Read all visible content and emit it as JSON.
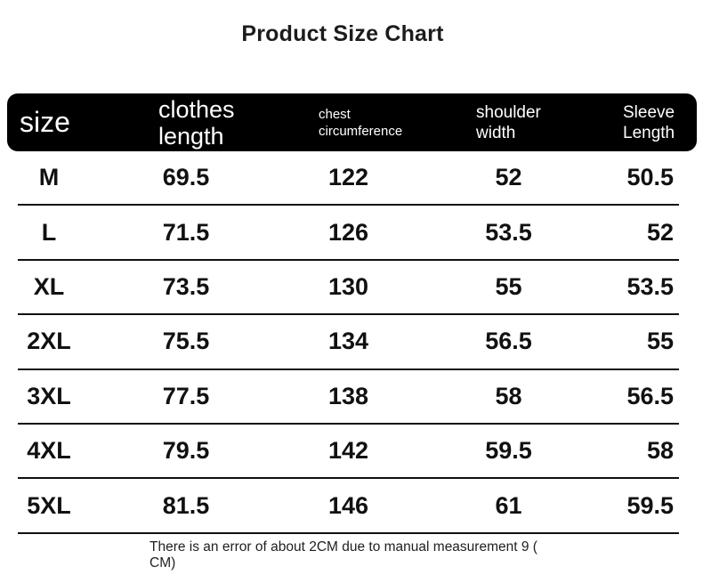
{
  "title": "Product Size Chart",
  "table": {
    "columns": [
      {
        "key": "size",
        "label": "size"
      },
      {
        "key": "clothes_length",
        "label": "clothes length"
      },
      {
        "key": "chest_circumference",
        "label": "chest circumference"
      },
      {
        "key": "shoulder_width",
        "label": "shoulder width"
      },
      {
        "key": "sleeve_length",
        "label": "Sleeve Length"
      }
    ],
    "rows": [
      {
        "size": "M",
        "clothes_length": "69.5",
        "chest_circumference": "122",
        "shoulder_width": "52",
        "sleeve_length": "50.5"
      },
      {
        "size": "L",
        "clothes_length": "71.5",
        "chest_circumference": "126",
        "shoulder_width": "53.5",
        "sleeve_length": "52"
      },
      {
        "size": "XL",
        "clothes_length": "73.5",
        "chest_circumference": "130",
        "shoulder_width": "55",
        "sleeve_length": "53.5"
      },
      {
        "size": "2XL",
        "clothes_length": "75.5",
        "chest_circumference": "134",
        "shoulder_width": "56.5",
        "sleeve_length": "55"
      },
      {
        "size": "3XL",
        "clothes_length": "77.5",
        "chest_circumference": "138",
        "shoulder_width": "58",
        "sleeve_length": "56.5"
      },
      {
        "size": "4XL",
        "clothes_length": "79.5",
        "chest_circumference": "142",
        "shoulder_width": "59.5",
        "sleeve_length": "58"
      },
      {
        "size": "5XL",
        "clothes_length": "81.5",
        "chest_circumference": "146",
        "shoulder_width": "61",
        "sleeve_length": "59.5"
      }
    ]
  },
  "footnote": "There is an error of about 2CM due to manual measurement 9 ( CM)",
  "colors": {
    "header_background": "#000000",
    "header_text": "#ffffff",
    "body_text": "#111111",
    "row_divider": "#101010",
    "page_background": "#ffffff"
  },
  "chart_data": {
    "type": "table",
    "title": "Product Size Chart",
    "columns": [
      "size",
      "clothes length",
      "chest circumference",
      "shoulder width",
      "Sleeve Length"
    ],
    "rows": [
      [
        "M",
        69.5,
        122,
        52,
        50.5
      ],
      [
        "L",
        71.5,
        126,
        53.5,
        52
      ],
      [
        "XL",
        73.5,
        130,
        55,
        53.5
      ],
      [
        "2XL",
        75.5,
        134,
        56.5,
        55
      ],
      [
        "3XL",
        77.5,
        138,
        58,
        56.5
      ],
      [
        "4XL",
        79.5,
        142,
        59.5,
        58
      ],
      [
        "5XL",
        81.5,
        146,
        61,
        59.5
      ]
    ],
    "units": "CM",
    "note": "There is an error of about 2CM due to manual measurement 9 ( CM)"
  }
}
